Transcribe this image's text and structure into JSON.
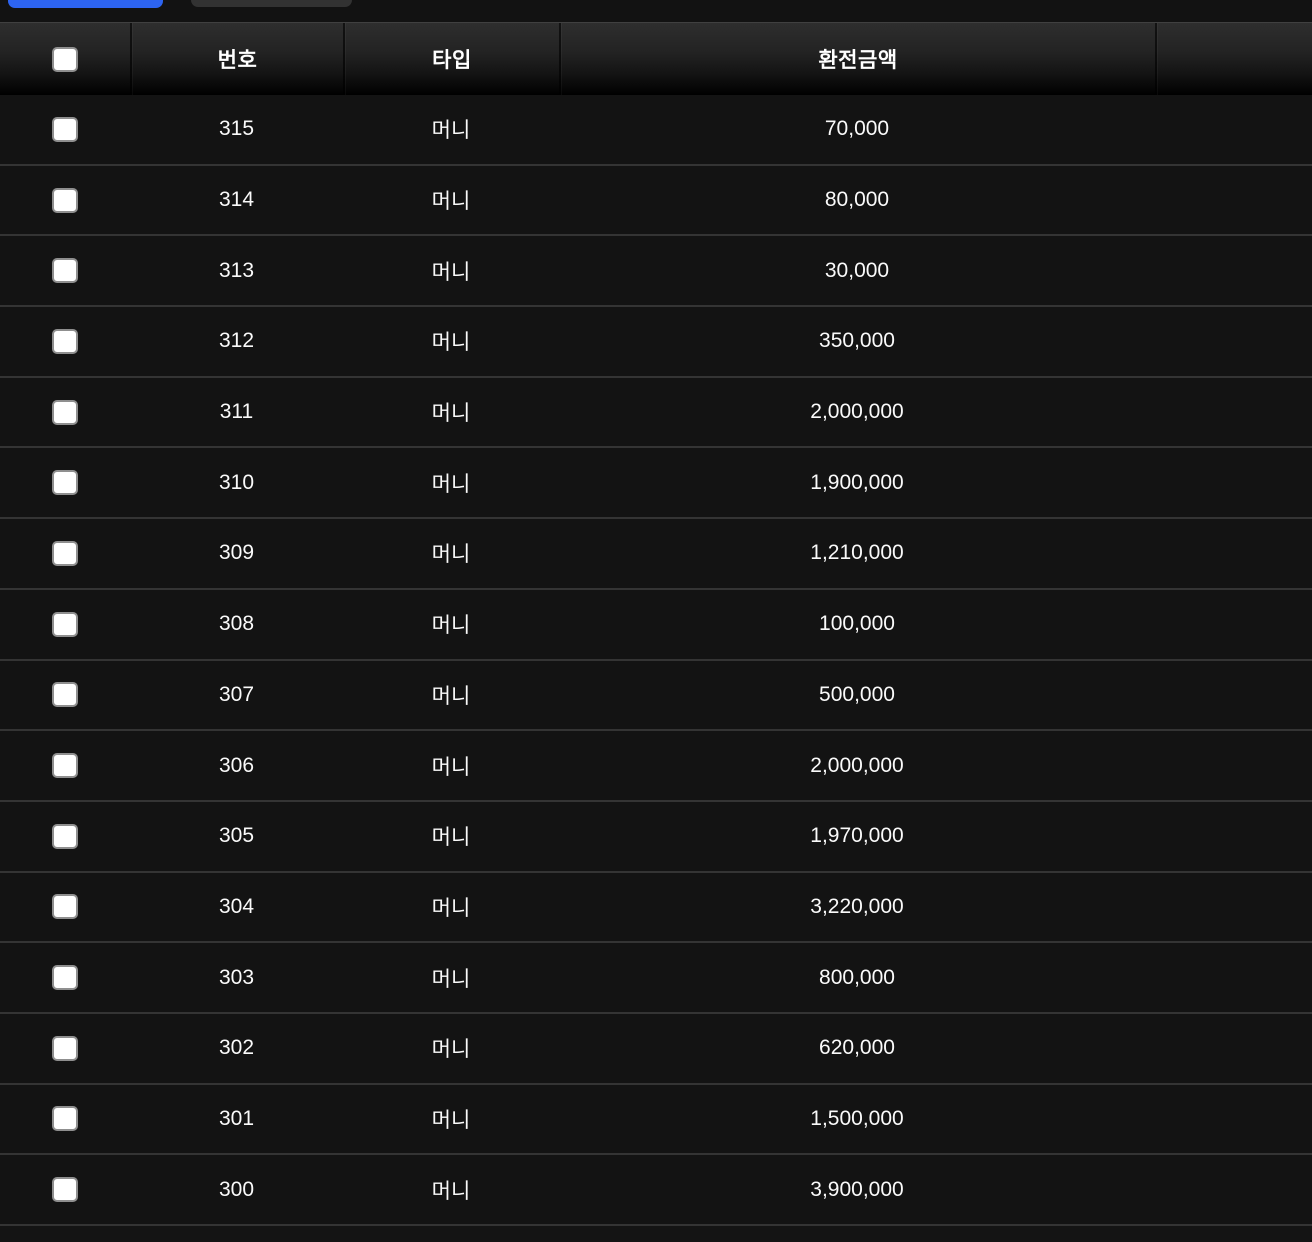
{
  "colors": {
    "accent_blue": "#2d64f1",
    "button_gray": "#323232",
    "background": "#131313",
    "row_separator": "#343434",
    "text": "#ffffff"
  },
  "table": {
    "headers": {
      "no": "번호",
      "type": "타입",
      "amount": "환전금액"
    },
    "select_all_checked": false,
    "rows": [
      {
        "no": "315",
        "type": "머니",
        "amount": "70,000",
        "checked": false
      },
      {
        "no": "314",
        "type": "머니",
        "amount": "80,000",
        "checked": false
      },
      {
        "no": "313",
        "type": "머니",
        "amount": "30,000",
        "checked": false
      },
      {
        "no": "312",
        "type": "머니",
        "amount": "350,000",
        "checked": false
      },
      {
        "no": "311",
        "type": "머니",
        "amount": "2,000,000",
        "checked": false
      },
      {
        "no": "310",
        "type": "머니",
        "amount": "1,900,000",
        "checked": false
      },
      {
        "no": "309",
        "type": "머니",
        "amount": "1,210,000",
        "checked": false
      },
      {
        "no": "308",
        "type": "머니",
        "amount": "100,000",
        "checked": false
      },
      {
        "no": "307",
        "type": "머니",
        "amount": "500,000",
        "checked": false
      },
      {
        "no": "306",
        "type": "머니",
        "amount": "2,000,000",
        "checked": false
      },
      {
        "no": "305",
        "type": "머니",
        "amount": "1,970,000",
        "checked": false
      },
      {
        "no": "304",
        "type": "머니",
        "amount": "3,220,000",
        "checked": false
      },
      {
        "no": "303",
        "type": "머니",
        "amount": "800,000",
        "checked": false
      },
      {
        "no": "302",
        "type": "머니",
        "amount": "620,000",
        "checked": false
      },
      {
        "no": "301",
        "type": "머니",
        "amount": "1,500,000",
        "checked": false
      },
      {
        "no": "300",
        "type": "머니",
        "amount": "3,900,000",
        "checked": false
      }
    ]
  }
}
